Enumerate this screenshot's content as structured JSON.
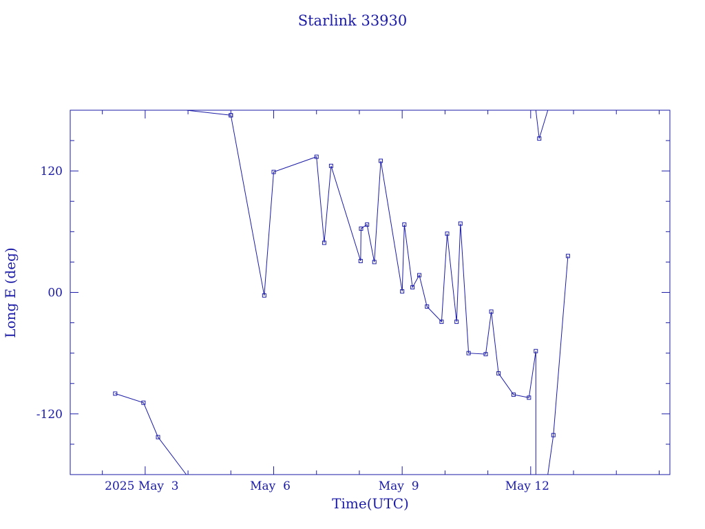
{
  "chart_data": {
    "type": "line",
    "title": "Starlink 33930",
    "xlabel": "Time(UTC)",
    "ylabel": "Long E (deg)",
    "x_unit": "days (UTC), May 2025",
    "xlim": [
      1.25,
      15.25
    ],
    "ylim": [
      -180,
      180
    ],
    "x_ticks": [
      {
        "x": 3,
        "label": "2025 May  3"
      },
      {
        "x": 6,
        "label": "May  6"
      },
      {
        "x": 9,
        "label": "May  9"
      },
      {
        "x": 12,
        "label": "May 12"
      }
    ],
    "y_ticks": [
      {
        "y": 120,
        "label": "120"
      },
      {
        "y": 0,
        "label": "00"
      },
      {
        "y": -120,
        "label": "-120"
      }
    ],
    "grid": false,
    "color": "#1a1aa6",
    "segments": [
      [
        [
          2.3,
          -100
        ],
        [
          2.96,
          -109
        ],
        [
          3.3,
          -143
        ],
        [
          3.96,
          -180
        ]
      ],
      [
        [
          3.96,
          180
        ],
        [
          5.0,
          175
        ]
      ],
      [
        [
          5.0,
          175
        ],
        [
          5.78,
          -3
        ],
        [
          6.0,
          119
        ],
        [
          7.0,
          134
        ],
        [
          7.18,
          49
        ],
        [
          7.34,
          125
        ],
        [
          8.03,
          31
        ],
        [
          8.04,
          63
        ],
        [
          8.18,
          67
        ],
        [
          8.35,
          30
        ],
        [
          8.5,
          130
        ],
        [
          9.0,
          1
        ],
        [
          9.05,
          67
        ],
        [
          9.24,
          5
        ],
        [
          9.4,
          17
        ],
        [
          9.58,
          -14
        ],
        [
          9.92,
          -29
        ],
        [
          10.05,
          58
        ],
        [
          10.27,
          -29
        ],
        [
          10.36,
          68
        ],
        [
          10.55,
          -60
        ],
        [
          10.95,
          -61
        ],
        [
          11.08,
          -19
        ],
        [
          11.25,
          -80
        ],
        [
          11.6,
          -101
        ],
        [
          11.96,
          -104
        ],
        [
          12.12,
          -58
        ],
        [
          12.12,
          -180
        ]
      ],
      [
        [
          12.12,
          180
        ],
        [
          12.2,
          152
        ],
        [
          12.4,
          180
        ]
      ],
      [
        [
          12.4,
          -180
        ],
        [
          12.53,
          -141
        ],
        [
          12.87,
          36
        ]
      ]
    ]
  }
}
